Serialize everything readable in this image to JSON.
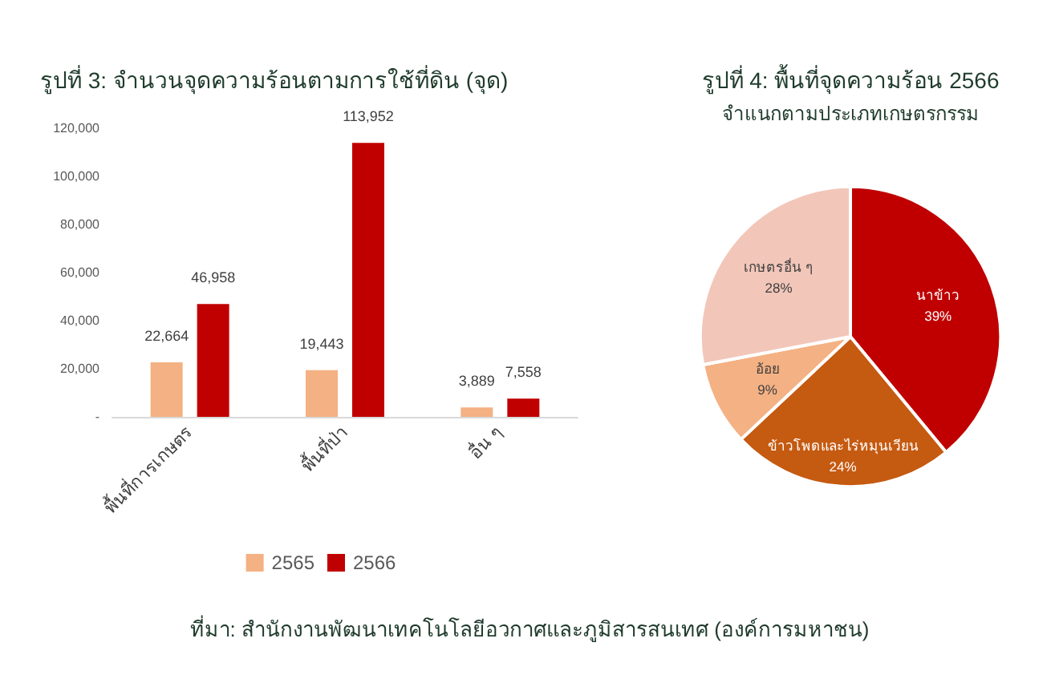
{
  "chart_data": [
    {
      "type": "bar",
      "title": "รูปที่ 3: จำนวนจุดความร้อนตามการใช้ที่ดิน (จุด)",
      "categories": [
        "พื้นที่การเกษตร",
        "พื้นที่ป่า",
        "อื่น ๆ"
      ],
      "series": [
        {
          "name": "2565",
          "color": "#f4b183",
          "values": [
            22664,
            19443,
            3889
          ],
          "value_labels": [
            "22,664",
            "19,443",
            "3,889"
          ]
        },
        {
          "name": "2566",
          "color": "#c00000",
          "values": [
            46958,
            113952,
            7558
          ],
          "value_labels": [
            "46,958",
            "113,952",
            "7,558"
          ]
        }
      ],
      "ylim": [
        0,
        120000
      ],
      "yticks": [
        {
          "value": 0,
          "label": "-"
        },
        {
          "value": 20000,
          "label": "20,000"
        },
        {
          "value": 40000,
          "label": "40,000"
        },
        {
          "value": 60000,
          "label": "60,000"
        },
        {
          "value": 80000,
          "label": "80,000"
        },
        {
          "value": 100000,
          "label": "100,000"
        },
        {
          "value": 120000,
          "label": "120,000"
        }
      ],
      "grid": false,
      "legend": "bottom",
      "annotations": [
        "ที่มา: สำนักงานพัฒนาเทคโนโลยีอวกาศและภูมิสารสนเทศ (องค์การมหาชน)"
      ]
    },
    {
      "type": "pie",
      "title": "รูปที่ 4: พื้นที่จุดความร้อน 2566",
      "subtitle": "จำแนกตามประเภทเกษตรกรรม",
      "categories": [
        "นาข้าว",
        "ข้าวโพดและไร่หมุนเวียน",
        "อ้อย",
        "เกษตรอื่น ๆ"
      ],
      "values": [
        39,
        24,
        9,
        28
      ],
      "colors": [
        "#c00000",
        "#c55a11",
        "#f4b183",
        "#f2c6b9"
      ],
      "value_labels": [
        "39%",
        "24%",
        "9%",
        "28%"
      ],
      "legend": false
    }
  ]
}
